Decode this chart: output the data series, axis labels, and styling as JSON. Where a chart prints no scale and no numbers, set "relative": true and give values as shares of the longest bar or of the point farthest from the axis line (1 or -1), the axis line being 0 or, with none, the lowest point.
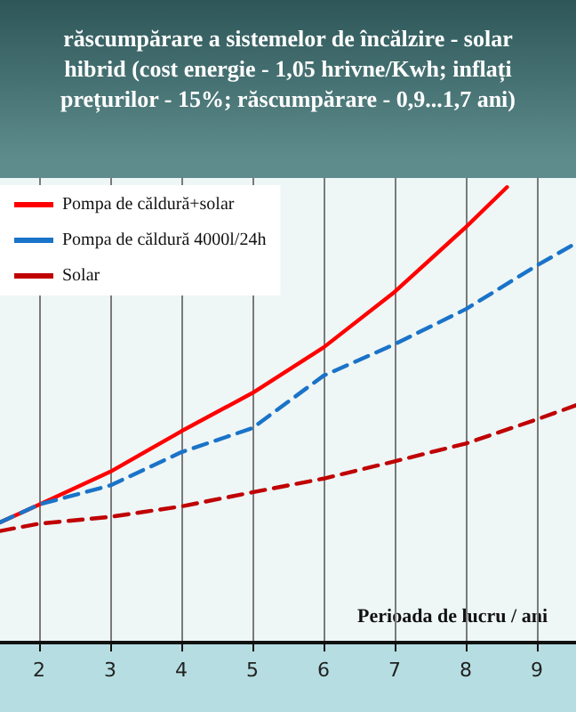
{
  "chart_data": {
    "type": "line",
    "title": "răscumpărare a sistemelor de încălzire - solar\nhibrid (cost energie - 1,05 hrivne/Kwh; inflați\nprețurilor - 15%; răscumpărare - 0,9...1,7 ani)",
    "xlabel": "Perioada de lucru / ani",
    "relative": true,
    "xlim": [
      1.45,
      9.55
    ],
    "xticks": [
      2,
      3,
      4,
      5,
      6,
      7,
      8,
      9
    ],
    "x": [
      1.45,
      2,
      3,
      4,
      5,
      6,
      7,
      8,
      9,
      9.55
    ],
    "series": [
      {
        "name": "Pompa de căldură+solar",
        "color": "#ff0000",
        "line_style": "solid",
        "x": [
          1.45,
          2,
          3,
          4,
          5,
          6,
          7,
          8,
          8.58
        ],
        "values": [
          0.264,
          0.303,
          0.375,
          0.464,
          0.548,
          0.648,
          0.77,
          0.912,
          1.0
        ]
      },
      {
        "name": "Pompa de căldură 4000l/24h",
        "color": "#1a73c8",
        "line_style": "dashed",
        "values": [
          0.264,
          0.303,
          0.345,
          0.418,
          0.471,
          0.586,
          0.655,
          0.732,
          0.828,
          0.877
        ]
      },
      {
        "name": "Solar",
        "color": "#c00000",
        "line_style": "dashed",
        "values": [
          0.245,
          0.261,
          0.276,
          0.299,
          0.33,
          0.36,
          0.398,
          0.437,
          0.49,
          0.521
        ]
      }
    ],
    "grid": "x",
    "legend": "top left",
    "marker": "none"
  }
}
